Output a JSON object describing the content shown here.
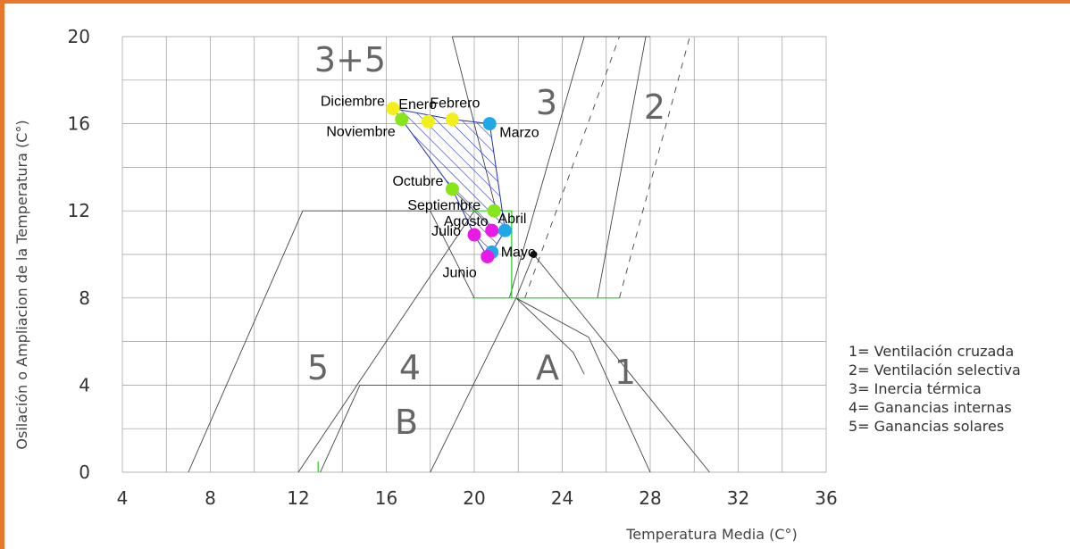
{
  "chart_data": {
    "type": "scatter",
    "title": "",
    "xlabel": "Temperatura Media (C°)",
    "ylabel": "Osilación o Ampliacion de la Temperatura (C°)",
    "xlim": [
      4,
      36
    ],
    "ylim": [
      0,
      20
    ],
    "x_ticks": [
      "4",
      "8",
      "12",
      "16",
      "20",
      "24",
      "28",
      "32",
      "36"
    ],
    "y_ticks": [
      "0",
      "4",
      "8",
      "12",
      "16",
      "20"
    ],
    "grid": true,
    "points": [
      {
        "label": "Enero",
        "x": 17.9,
        "y": 16.1,
        "color": "#f2ef1a"
      },
      {
        "label": "Febrero",
        "x": 19.0,
        "y": 16.2,
        "color": "#f2ef1a"
      },
      {
        "label": "Marzo",
        "x": 20.7,
        "y": 16.0,
        "color": "#1fa7e6"
      },
      {
        "label": "Abril",
        "x": 21.4,
        "y": 11.1,
        "color": "#1fa7e6"
      },
      {
        "label": "Mayo",
        "x": 20.8,
        "y": 10.1,
        "color": "#1fa7e6"
      },
      {
        "label": "Junio",
        "x": 20.6,
        "y": 9.9,
        "color": "#e81ae6"
      },
      {
        "label": "Julio",
        "x": 20.0,
        "y": 10.9,
        "color": "#e81ae6"
      },
      {
        "label": "Agosto",
        "x": 20.8,
        "y": 11.1,
        "color": "#e81ae6"
      },
      {
        "label": "Septiembre",
        "x": 20.9,
        "y": 12.0,
        "color": "#86e61a"
      },
      {
        "label": "Octubre",
        "x": 19.0,
        "y": 13.0,
        "color": "#86e61a"
      },
      {
        "label": "Noviembre",
        "x": 16.7,
        "y": 16.2,
        "color": "#86e61a"
      },
      {
        "label": "Diciembre",
        "x": 16.3,
        "y": 16.7,
        "color": "#f2ef1a"
      }
    ],
    "comfort_point": {
      "x": 22.7,
      "y": 10.0
    },
    "zones": [
      "3+5",
      "3",
      "2",
      "5",
      "4",
      "A",
      "1",
      "B"
    ],
    "legend": [
      "1= Ventilación cruzada",
      "2= Ventilación selectiva",
      "3= Inercia térmica",
      "4= Ganancias internas",
      "5= Ganancias solares"
    ]
  },
  "colors": {
    "frame": "#e8762c",
    "grid": "#9a9a9a",
    "zone_lines": "#444444",
    "comfort_lines": "#22cc22",
    "hatch": "#2233bb"
  }
}
